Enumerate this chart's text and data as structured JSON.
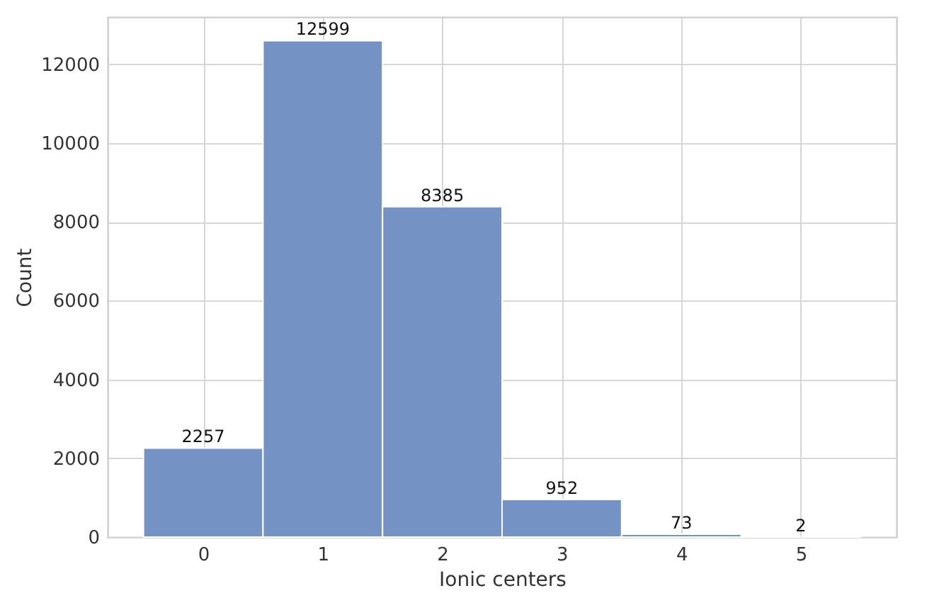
{
  "chart_data": {
    "type": "histogram",
    "xlabel": "Ionic centers",
    "ylabel": "Count",
    "bins": [
      -0.5,
      0.5,
      1.5,
      2.5,
      3.5,
      4.5,
      5.5
    ],
    "values": [
      2257,
      12599,
      8385,
      952,
      73,
      2
    ],
    "color": "#7493c4",
    "data_labels": true,
    "xlim": [
      -0.8,
      5.8
    ],
    "xticks": [
      0,
      1,
      2,
      3,
      4,
      5
    ],
    "ylim": [
      0,
      13200
    ],
    "yticks": [
      0,
      2000,
      4000,
      6000,
      8000,
      10000,
      12000
    ],
    "grid": true
  }
}
